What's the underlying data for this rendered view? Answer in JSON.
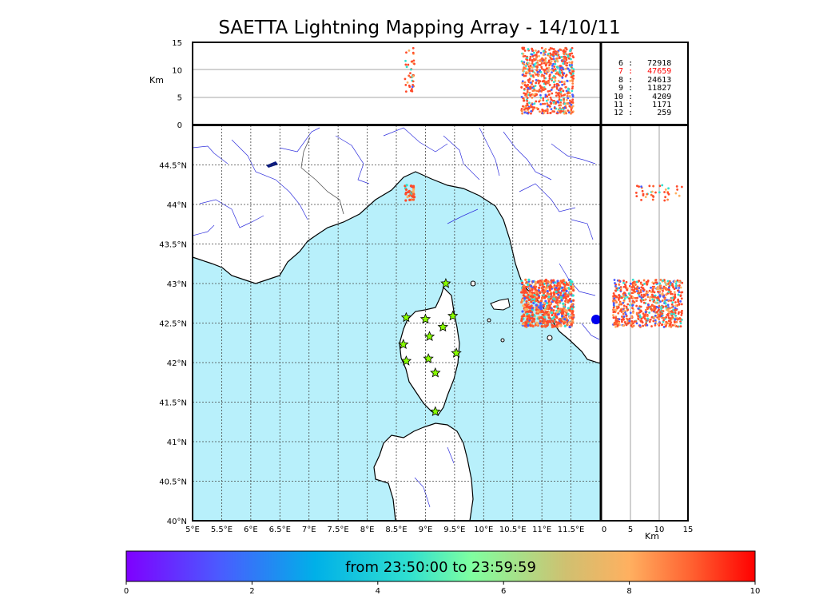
{
  "title": "SAETTA Lightning Mapping Array - 14/10/11",
  "map": {
    "lon_ticks": [
      "5°E",
      "5.5°E",
      "6°E",
      "6.5°E",
      "7°E",
      "7.5°E",
      "8°E",
      "8.5°E",
      "9°E",
      "9.5°E",
      "10°E",
      "10.5°E",
      "11°E",
      "11.5°E"
    ],
    "lat_ticks": [
      "40°N",
      "40.5°N",
      "41°N",
      "41.5°N",
      "42°N",
      "42.5°N",
      "43°N",
      "43.5°N",
      "44°N",
      "44.5°N"
    ],
    "lon_range": [
      5,
      12
    ],
    "lat_range": [
      40,
      45
    ],
    "sea_color": "#b8f0fb",
    "land_color": "#ffffff",
    "river_color": "#2020dd",
    "station_color": "#88ff00",
    "stations": [
      {
        "lon": 9.35,
        "lat": 43.0
      },
      {
        "lon": 8.67,
        "lat": 42.57
      },
      {
        "lon": 9.0,
        "lat": 42.55
      },
      {
        "lon": 9.47,
        "lat": 42.59
      },
      {
        "lon": 9.3,
        "lat": 42.45
      },
      {
        "lon": 9.07,
        "lat": 42.33
      },
      {
        "lon": 8.62,
        "lat": 42.23
      },
      {
        "lon": 9.53,
        "lat": 42.12
      },
      {
        "lon": 9.05,
        "lat": 42.05
      },
      {
        "lon": 8.67,
        "lat": 42.02
      },
      {
        "lon": 9.17,
        "lat": 41.87
      },
      {
        "lon": 9.17,
        "lat": 41.38
      }
    ]
  },
  "altitude_panel": {
    "label": "Km",
    "ticks": [
      "0",
      "5",
      "10",
      "15"
    ]
  },
  "side_panel": {
    "xlabel": "Km",
    "ticks": [
      "0",
      "5",
      "10",
      "15"
    ]
  },
  "stations_count": [
    {
      "id": "6",
      "count": "72918",
      "color": "#000000"
    },
    {
      "id": "7",
      "count": "47659",
      "color": "#ff0000"
    },
    {
      "id": "8",
      "count": "24613",
      "color": "#000000"
    },
    {
      "id": "9",
      "count": "11827",
      "color": "#000000"
    },
    {
      "id": "10",
      "count": "4209",
      "color": "#000000"
    },
    {
      "id": "11",
      "count": "1171",
      "color": "#000000"
    },
    {
      "id": "12",
      "count": "259",
      "color": "#000000"
    }
  ],
  "colorbar": {
    "text": "from 23:50:00 to 23:59:59",
    "ticks": [
      "0",
      "2",
      "4",
      "6",
      "8",
      "10"
    ],
    "range": [
      0,
      10
    ]
  },
  "clusters": [
    {
      "lon": 8.73,
      "lat": 44.15,
      "dlon": 0.08,
      "dlat": 0.1,
      "alt": [
        6,
        14
      ],
      "n": 40
    },
    {
      "lon": 11.1,
      "lat": 42.75,
      "dlon": 0.45,
      "dlat": 0.3,
      "alt": [
        2,
        14
      ],
      "n": 700
    }
  ]
}
